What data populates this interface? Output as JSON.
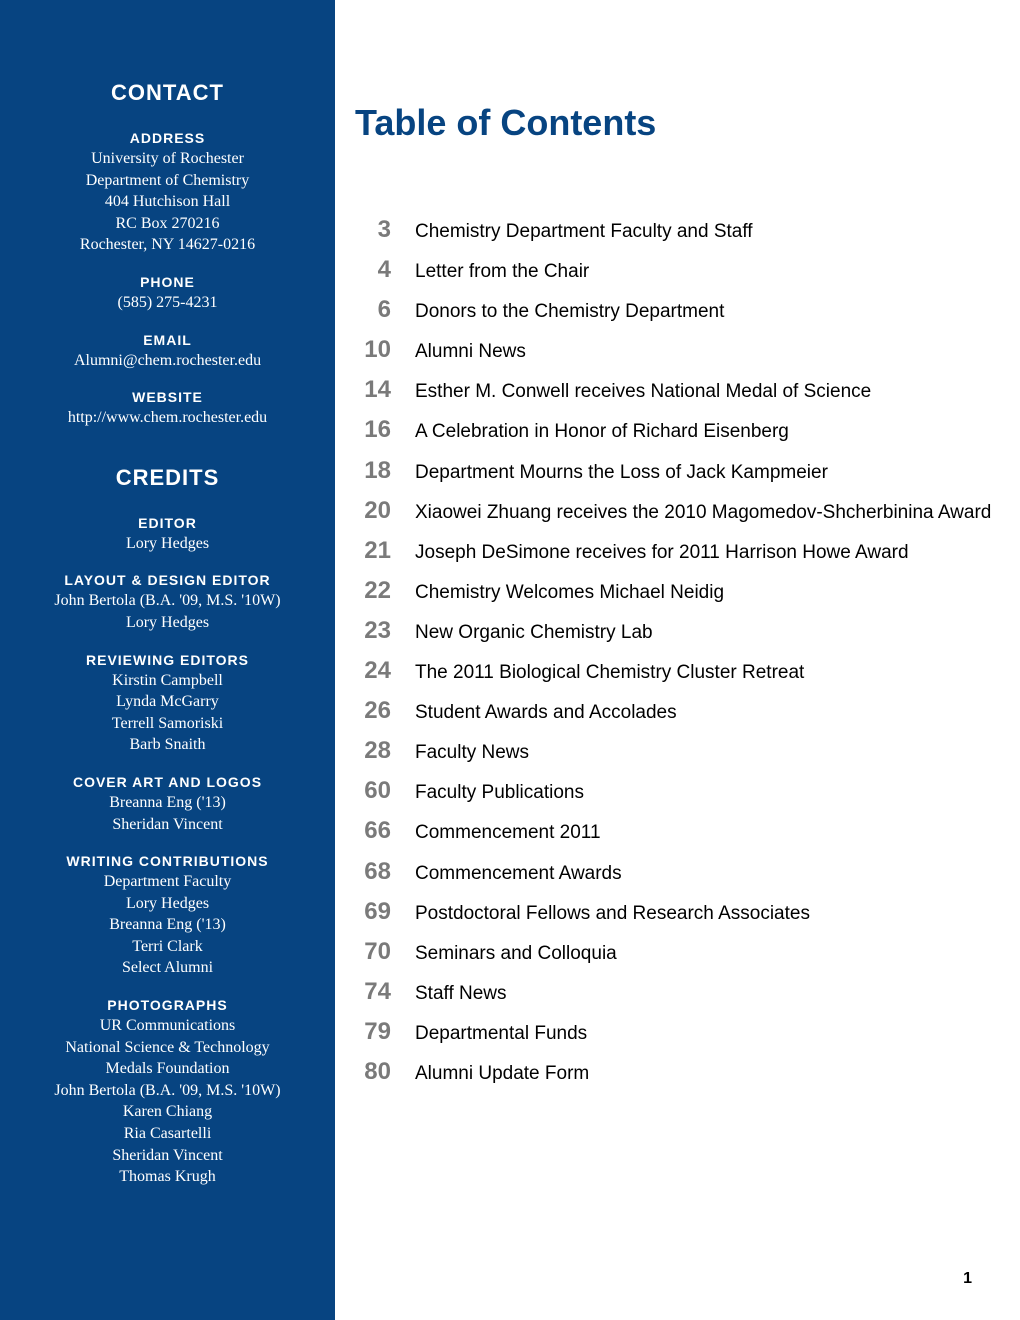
{
  "sidebar": {
    "contact": {
      "heading": "CONTACT",
      "address_label": "ADDRESS",
      "address_lines": [
        "University of Rochester",
        "Department of Chemistry",
        "404 Hutchison Hall",
        "RC Box 270216",
        "Rochester, NY 14627-0216"
      ],
      "phone_label": "PHONE",
      "phone": "(585) 275-4231",
      "email_label": "EMAIL",
      "email": "Alumni@chem.rochester.edu",
      "website_label": "WEBSITE",
      "website": "http://www.chem.rochester.edu"
    },
    "credits": {
      "heading": "CREDITS",
      "editor_label": "EDITOR",
      "editor": "Lory Hedges",
      "layout_label": "LAYOUT & DESIGN EDITOR",
      "layout_lines": [
        "John Bertola (B.A. '09, M.S.  '10W)",
        "Lory Hedges"
      ],
      "reviewing_label": "REVIEWING EDITORS",
      "reviewing_lines": [
        "Kirstin Campbell",
        "Lynda McGarry",
        "Terrell Samoriski",
        "Barb Snaith"
      ],
      "cover_label": "COVER ART AND LOGOS",
      "cover_lines": [
        "Breanna Eng ('13)",
        "Sheridan Vincent"
      ],
      "writing_label": "WRITING CONTRIBUTIONS",
      "writing_lines": [
        "Department Faculty",
        "Lory Hedges",
        "Breanna Eng ('13)",
        "Terri Clark",
        "Select Alumni"
      ],
      "photos_label": "PHOTOGRAPHS",
      "photos_lines": [
        "UR Communications",
        "National Science & Technology",
        "Medals Foundation",
        "John Bertola (B.A. '09, M.S.  '10W)",
        "Karen Chiang",
        "Ria Casartelli",
        "Sheridan Vincent",
        "Thomas Krugh"
      ]
    }
  },
  "main": {
    "title": "Table of Contents",
    "toc": [
      {
        "page": "3",
        "title": "Chemistry Department Faculty and Staff"
      },
      {
        "page": "4",
        "title": "Letter from the Chair"
      },
      {
        "page": "6",
        "title": "Donors to the Chemistry Department"
      },
      {
        "page": "10",
        "title": "Alumni News"
      },
      {
        "page": "14",
        "title": "Esther M. Conwell receives National Medal of Science"
      },
      {
        "page": "16",
        "title": "A Celebration in Honor of Richard Eisenberg"
      },
      {
        "page": "18",
        "title": "Department Mourns the Loss of Jack Kampmeier"
      },
      {
        "page": "20",
        "title": "Xiaowei Zhuang receives the 2010 Magomedov-Shcherbinina Award"
      },
      {
        "page": "21",
        "title": "Joseph DeSimone receives for 2011 Harrison Howe Award"
      },
      {
        "page": "22",
        "title": "Chemistry Welcomes Michael Neidig"
      },
      {
        "page": "23",
        "title": "New Organic Chemistry Lab"
      },
      {
        "page": "24",
        "title": "The 2011 Biological Chemistry Cluster Retreat"
      },
      {
        "page": "26",
        "title": "Student Awards and Accolades"
      },
      {
        "page": "28",
        "title": "Faculty News"
      },
      {
        "page": "60",
        "title": "Faculty Publications"
      },
      {
        "page": "66",
        "title": "Commencement 2011"
      },
      {
        "page": "68",
        "title": "Commencement Awards"
      },
      {
        "page": "69",
        "title": "Postdoctoral Fellows and Research Associates"
      },
      {
        "page": "70",
        "title": "Seminars and Colloquia"
      },
      {
        "page": "74",
        "title": "Staff News"
      },
      {
        "page": "79",
        "title": "Departmental Funds"
      },
      {
        "page": "80",
        "title": "Alumni Update Form"
      }
    ]
  },
  "page_number": "1",
  "colors": {
    "sidebar_bg": "#074481",
    "sidebar_text": "#ffffff",
    "toc_title": "#074481",
    "toc_num": "#7a7a7a",
    "toc_text": "#000000",
    "page_bg": "#ffffff"
  }
}
